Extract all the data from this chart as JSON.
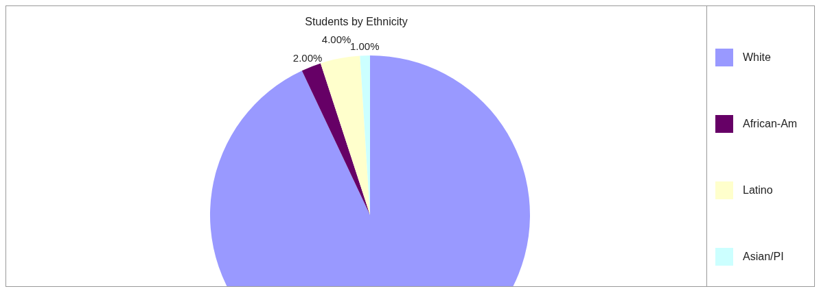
{
  "chart_data": {
    "type": "pie",
    "title": "Students by Ethnicity",
    "categories": [
      "White",
      "African-Am",
      "Latino",
      "Asian/PI"
    ],
    "values": [
      93,
      2,
      4,
      1
    ],
    "colors": [
      "#9999ff",
      "#660066",
      "#ffffcc",
      "#ccffff"
    ],
    "value_labels": [
      null,
      "2.00%",
      "4.00%",
      "1.00%"
    ],
    "legend": "right"
  }
}
